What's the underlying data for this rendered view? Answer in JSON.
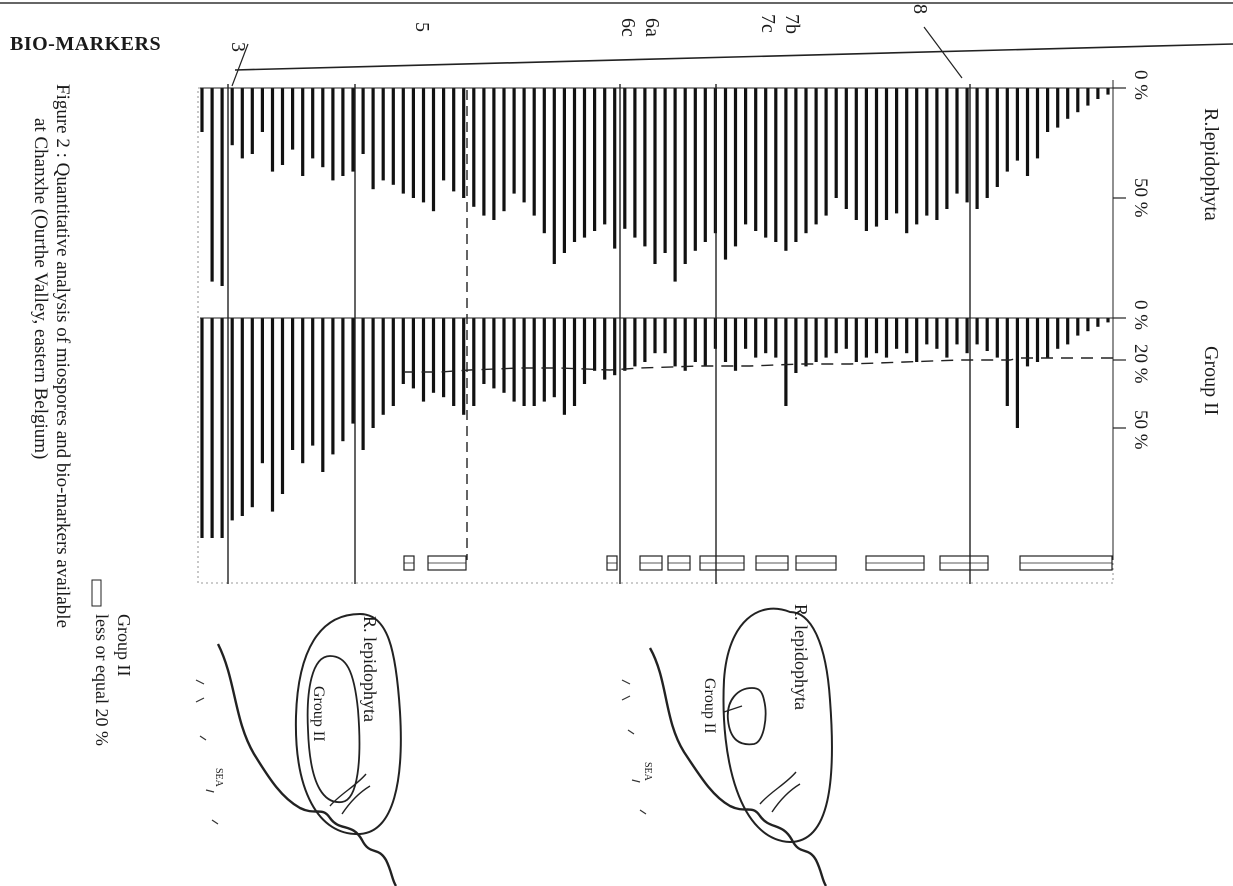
{
  "header": {
    "section": "BIO-MARKERS",
    "markers": [
      "3",
      "5",
      "6a",
      "6c",
      "7b",
      "7c",
      "8"
    ]
  },
  "axes": {
    "lepido_title": "R.lepidophyta",
    "lepido_ticks": [
      "0 %",
      "50 %"
    ],
    "group_title": "Group II",
    "group_ticks": [
      "0 %",
      "20 %",
      "50 %"
    ]
  },
  "caption": {
    "line1": "Figure 2 : Quantitative analysis of miospores and bio-markers available",
    "line2": "at Chanxhe (Ourthe Valley, eastern Belgium)"
  },
  "legend": {
    "line1": "Group II",
    "line2": "less or equal 20 %"
  },
  "maps": {
    "upper": {
      "outer": "R. lepidophyta",
      "inner": "Group II",
      "sea": "SEA"
    },
    "lower": {
      "outer": "R. lepidophyta",
      "inner": "Group II",
      "sea": "SEA"
    }
  },
  "chart_data": {
    "type": "bar",
    "orientation": "rotated 90° clockwise; samples run right (0) to left",
    "x_unit": "sample number (from top of section)",
    "series": [
      {
        "name": "R.lepidophyta",
        "unit": "%",
        "ylim": [
          0,
          100
        ],
        "values": [
          3,
          5,
          8,
          11,
          14,
          18,
          20,
          32,
          40,
          33,
          38,
          45,
          50,
          55,
          52,
          48,
          55,
          60,
          58,
          62,
          66,
          57,
          60,
          63,
          65,
          60,
          55,
          50,
          58,
          62,
          66,
          70,
          74,
          70,
          68,
          65,
          62,
          72,
          78,
          66,
          70,
          74,
          80,
          88,
          75,
          80,
          72,
          68,
          64,
          73,
          62,
          65,
          68,
          70,
          75,
          80,
          66,
          58,
          52,
          48,
          56,
          60,
          58,
          54,
          50,
          47,
          42,
          56,
          52,
          50,
          48,
          44,
          42,
          46,
          30,
          38,
          40,
          42,
          36,
          32,
          40,
          28,
          35,
          38,
          20,
          30,
          32,
          26,
          90,
          88,
          20
        ]
      },
      {
        "name": "Group II",
        "unit": "%",
        "ylim": [
          0,
          100
        ],
        "values": [
          2,
          4,
          6,
          8,
          12,
          14,
          18,
          20,
          22,
          50,
          40,
          18,
          15,
          12,
          16,
          12,
          18,
          14,
          12,
          20,
          16,
          14,
          18,
          16,
          18,
          20,
          14,
          16,
          18,
          20,
          22,
          25,
          40,
          18,
          16,
          18,
          14,
          24,
          20,
          14,
          22,
          20,
          24,
          22,
          16,
          16,
          20,
          22,
          24,
          26,
          28,
          24,
          30,
          40,
          44,
          36,
          38,
          40,
          40,
          38,
          34,
          32,
          30,
          40,
          44,
          40,
          36,
          34,
          38,
          32,
          30,
          40,
          44,
          50,
          60,
          48,
          56,
          62,
          70,
          58,
          66,
          60,
          80,
          88,
          66,
          86,
          90,
          92,
          100,
          100,
          100
        ]
      }
    ],
    "group_ii_threshold": 20,
    "marker_labels": [
      "3",
      "5",
      "6a",
      "6c",
      "7b",
      "7c",
      "8"
    ]
  }
}
